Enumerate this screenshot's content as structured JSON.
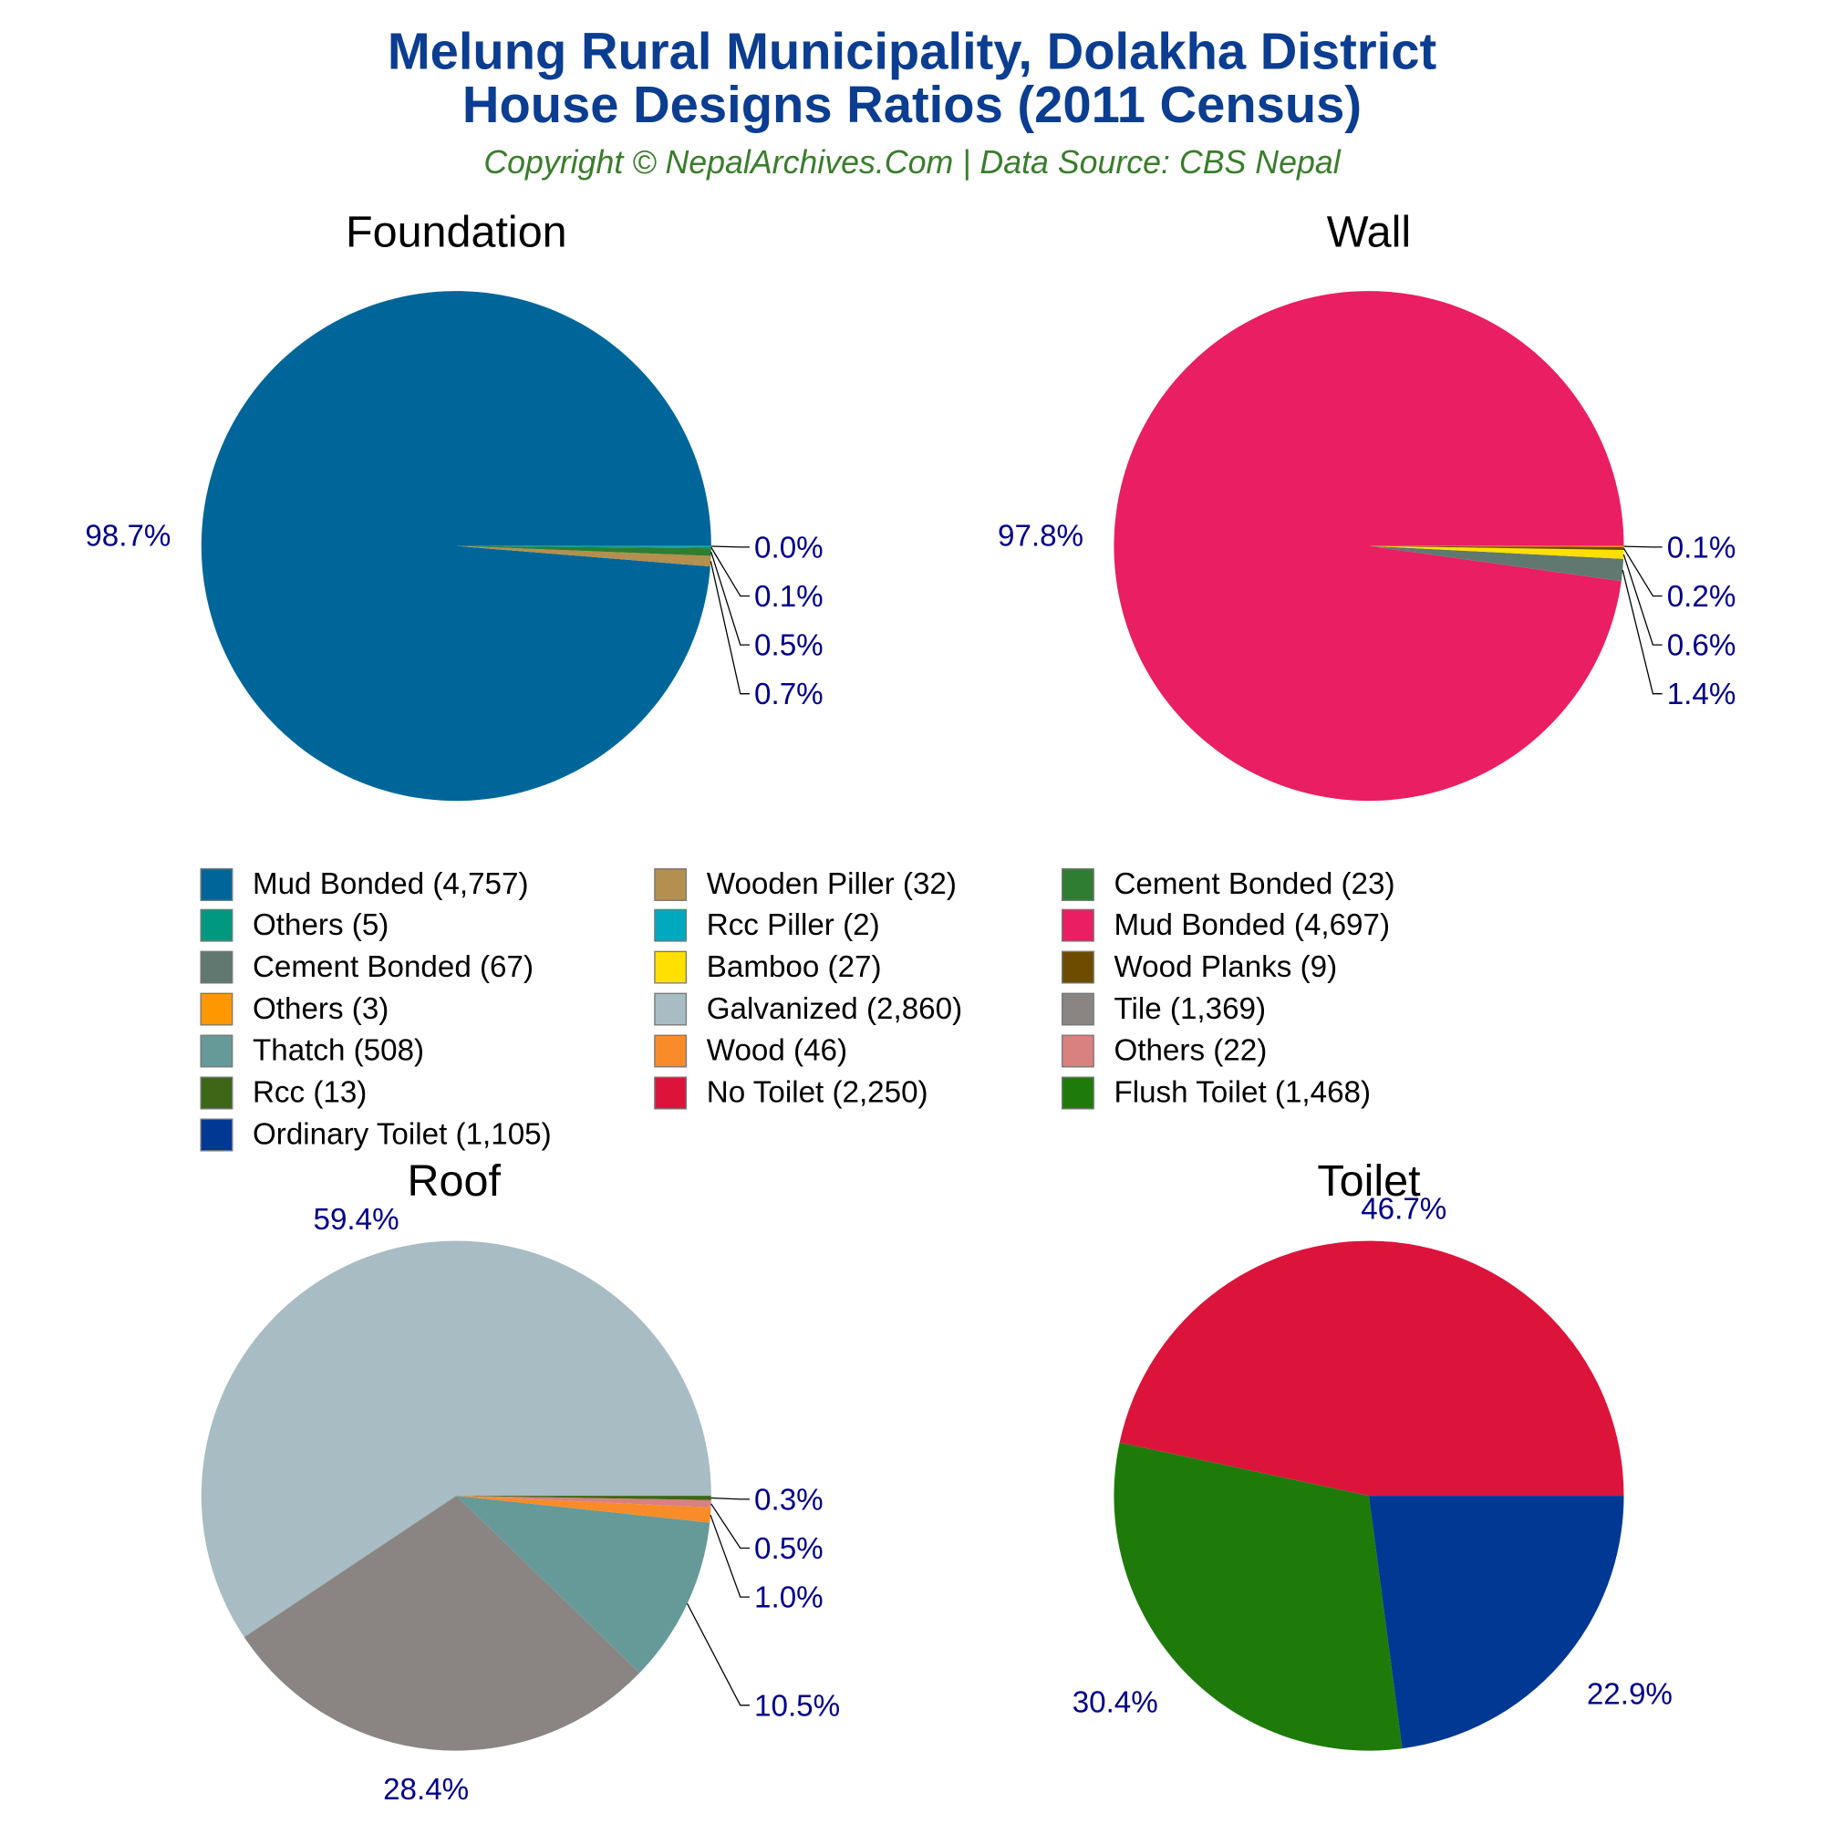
{
  "header": {
    "title_line1": "Melung Rural Municipality, Dolakha District",
    "title_line2": "House Designs Ratios (2011 Census)",
    "subtitle": "Copyright © NepalArchives.Com | Data Source: CBS Nepal"
  },
  "chart_data": [
    {
      "type": "pie",
      "title": "Foundation",
      "categories": [
        "Mud Bonded",
        "Wooden Piller",
        "Cement Bonded",
        "Others",
        "Rcc Piller"
      ],
      "values": [
        4757,
        32,
        23,
        5,
        2
      ],
      "labels": [
        "98.7%",
        "0.7%",
        "0.5%",
        "0.1%",
        "0.0%"
      ],
      "colors": [
        "#006699",
        "#b38f50",
        "#2e7d32",
        "#00997f",
        "#00a8c0"
      ]
    },
    {
      "type": "pie",
      "title": "Wall",
      "categories": [
        "Mud Bonded",
        "Cement Bonded",
        "Bamboo",
        "Wood Planks",
        "Others"
      ],
      "values": [
        4697,
        67,
        27,
        9,
        3
      ],
      "labels": [
        "97.8%",
        "1.4%",
        "0.6%",
        "0.2%",
        "0.1%"
      ],
      "colors": [
        "#e91e63",
        "#607870",
        "#ffe000",
        "#6d4c00",
        "#ff9800"
      ]
    },
    {
      "type": "pie",
      "title": "Roof",
      "categories": [
        "Galvanized",
        "Tile",
        "Thatch",
        "Wood",
        "Others",
        "Rcc"
      ],
      "values": [
        2860,
        1369,
        508,
        46,
        22,
        13
      ],
      "labels": [
        "59.4%",
        "28.4%",
        "10.5%",
        "1.0%",
        "0.5%",
        "0.3%"
      ],
      "colors": [
        "#a8bcc4",
        "#8a8582",
        "#659a99",
        "#f98c28",
        "#d98080",
        "#3d6617"
      ]
    },
    {
      "type": "pie",
      "title": "Toilet",
      "categories": [
        "No Toilet",
        "Flush Toilet",
        "Ordinary Toilet"
      ],
      "values": [
        2250,
        1468,
        1105
      ],
      "labels": [
        "46.7%",
        "30.4%",
        "22.9%"
      ],
      "colors": [
        "#dc143c",
        "#1e7b0a",
        "#003893"
      ]
    }
  ],
  "legend": [
    {
      "label": "Mud Bonded (4,757)",
      "color": "#006699"
    },
    {
      "label": "Wooden Piller (32)",
      "color": "#b38f50"
    },
    {
      "label": "Cement Bonded (23)",
      "color": "#2e7d32"
    },
    {
      "label": "Others (5)",
      "color": "#00997f"
    },
    {
      "label": "Rcc Piller (2)",
      "color": "#00a8c0"
    },
    {
      "label": "Mud Bonded (4,697)",
      "color": "#e91e63"
    },
    {
      "label": "Cement Bonded (67)",
      "color": "#607870"
    },
    {
      "label": "Bamboo (27)",
      "color": "#ffe000"
    },
    {
      "label": "Wood Planks (9)",
      "color": "#6d4c00"
    },
    {
      "label": "Others (3)",
      "color": "#ff9800"
    },
    {
      "label": "Galvanized (2,860)",
      "color": "#a8bcc4"
    },
    {
      "label": "Tile (1,369)",
      "color": "#8a8582"
    },
    {
      "label": "Thatch (508)",
      "color": "#659a99"
    },
    {
      "label": "Wood (46)",
      "color": "#f98c28"
    },
    {
      "label": "Others (22)",
      "color": "#d98080"
    },
    {
      "label": "Rcc (13)",
      "color": "#3d6617"
    },
    {
      "label": "No Toilet (2,250)",
      "color": "#dc143c"
    },
    {
      "label": "Flush Toilet (1,468)",
      "color": "#1e7b0a"
    },
    {
      "label": "Ordinary Toilet (1,105)",
      "color": "#003893"
    }
  ]
}
